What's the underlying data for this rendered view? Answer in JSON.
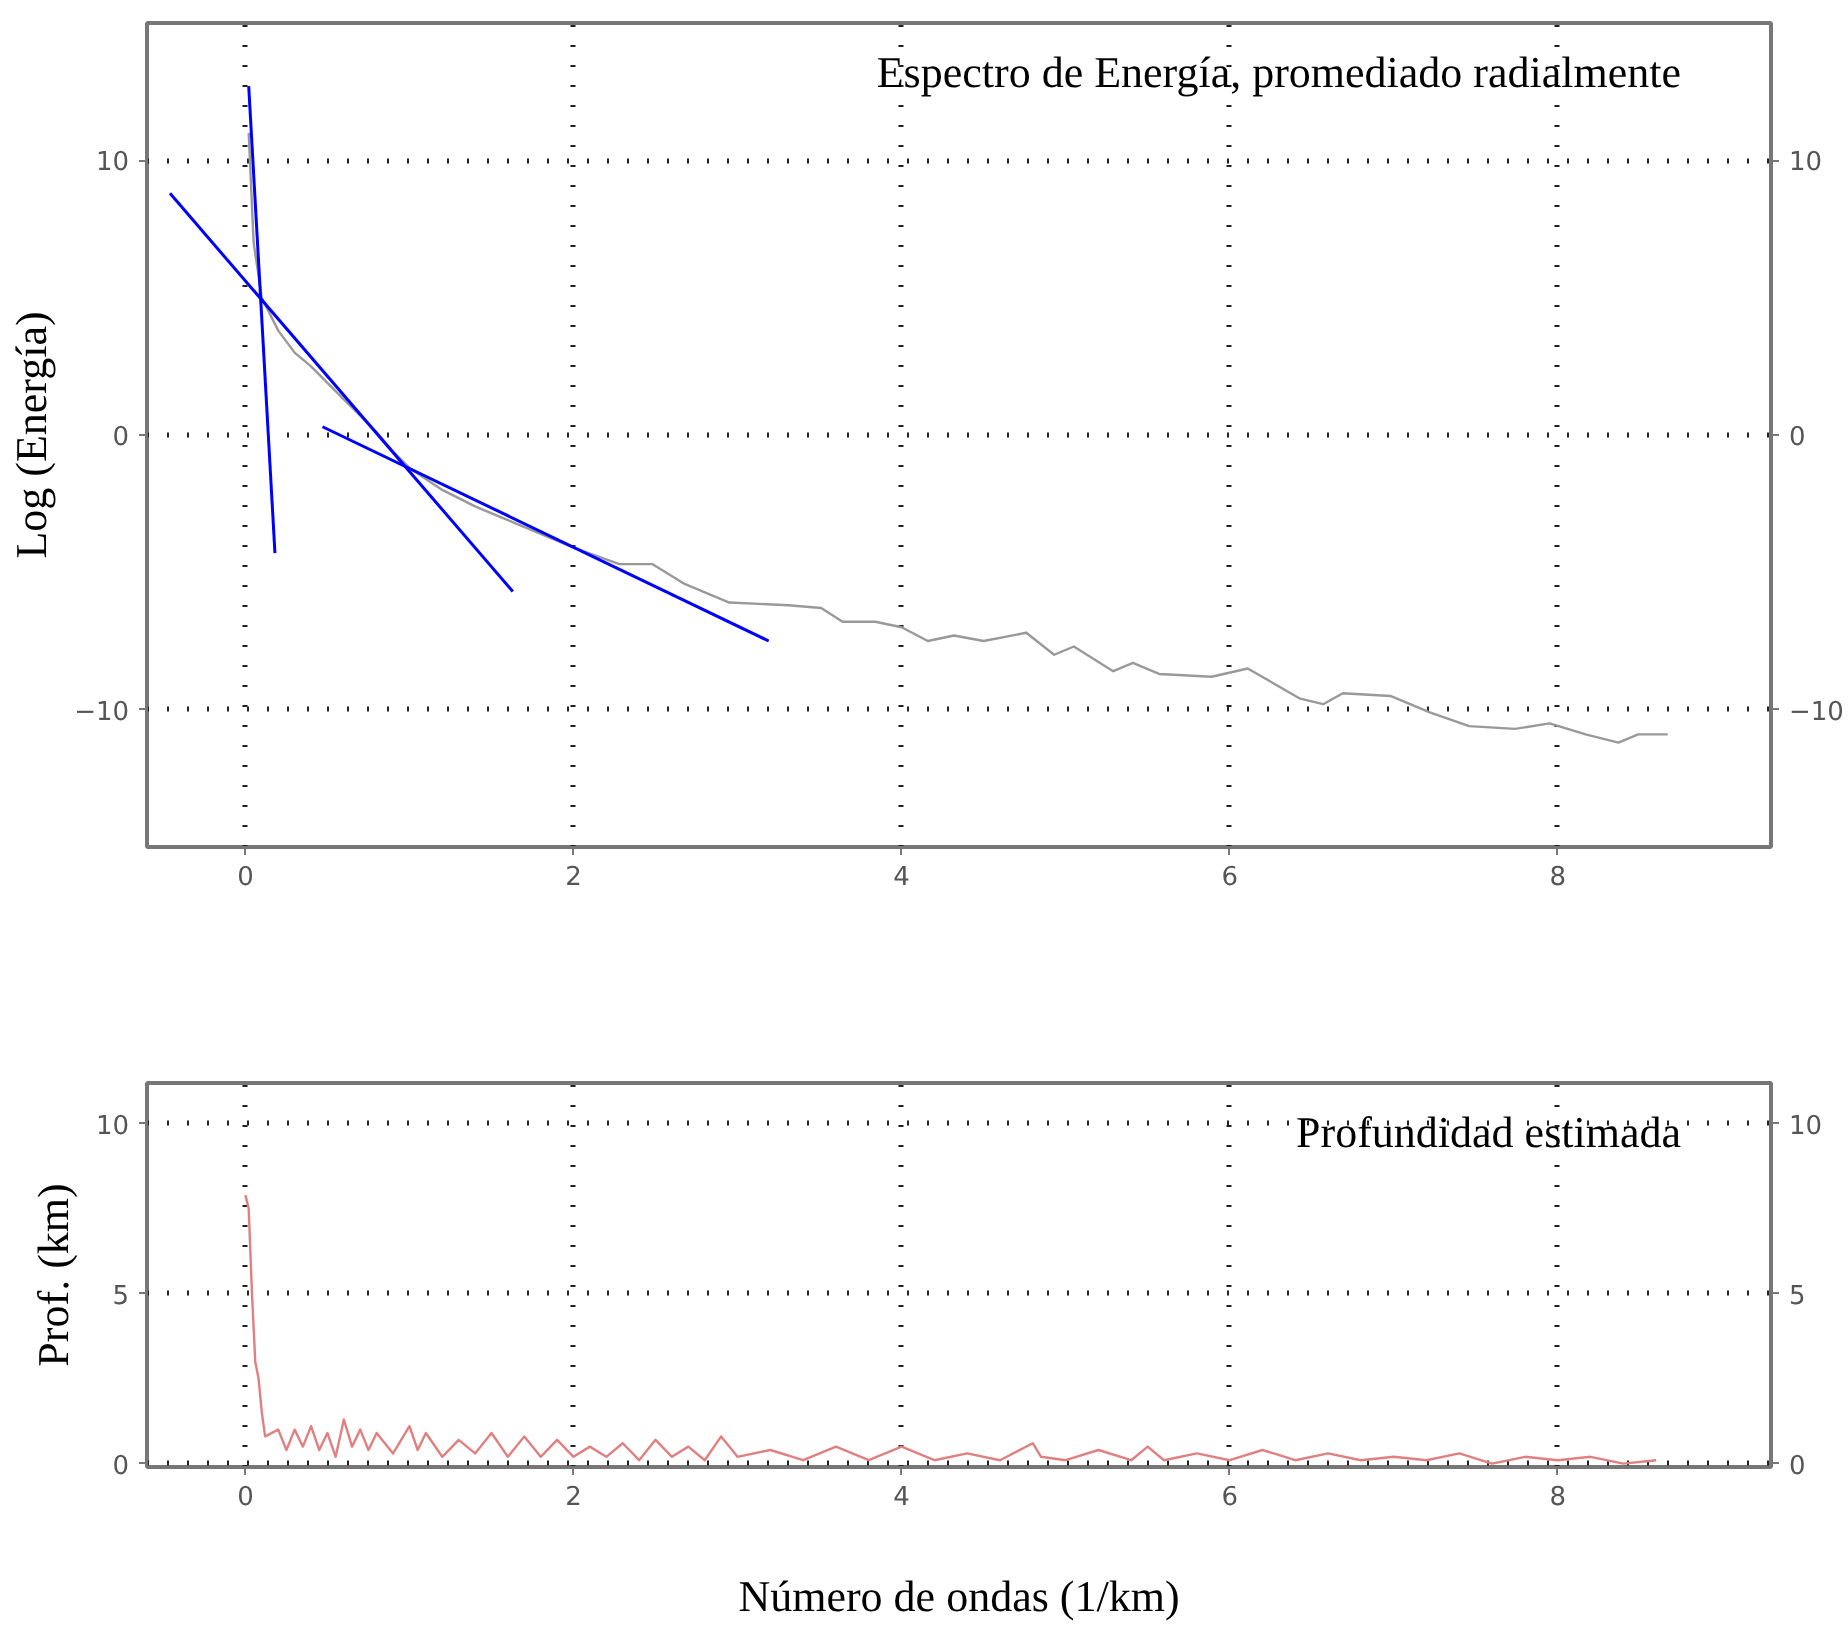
{
  "chart_data": [
    {
      "type": "line",
      "title": "Espectro de Energía, promediado radialmente",
      "ylabel": "Log (Energía)",
      "xlim": [
        -0.6,
        9.3
      ],
      "xticks": [
        0,
        2,
        4,
        6,
        8
      ],
      "ylim": [
        -15,
        15
      ],
      "yticks": [
        -10,
        0,
        10
      ],
      "y2lim": [
        -15,
        15
      ],
      "y2ticks": [
        -10,
        0,
        10
      ],
      "grid": true,
      "series": [
        {
          "color": "#999999",
          "x": [
            0.02,
            0.05,
            0.1,
            0.2,
            0.3,
            0.4,
            0.5,
            0.6,
            0.7,
            0.8,
            0.9,
            1.0,
            1.1,
            1.2,
            1.4,
            1.6,
            1.8,
            2.0,
            2.28,
            2.48,
            2.67,
            2.95,
            3.31,
            3.51,
            3.64,
            3.84,
            4.0,
            4.16,
            4.32,
            4.5,
            4.76,
            4.93,
            5.05,
            5.29,
            5.41,
            5.57,
            5.89,
            6.11,
            6.43,
            6.57,
            6.69,
            6.98,
            7.22,
            7.46,
            7.74,
            7.95,
            8.17,
            8.37,
            8.49,
            8.67
          ],
          "values": [
            11,
            7,
            5,
            3.8,
            3.0,
            2.5,
            1.9,
            1.3,
            0.7,
            0.1,
            -0.6,
            -1.2,
            -1.6,
            -2.0,
            -2.6,
            -3.1,
            -3.6,
            -4.1,
            -4.7,
            -4.7,
            -5.4,
            -6.1,
            -6.2,
            -6.3,
            -6.8,
            -6.8,
            -7.0,
            -7.5,
            -7.3,
            -7.5,
            -7.2,
            -8.0,
            -7.7,
            -8.6,
            -8.3,
            -8.7,
            -8.8,
            -8.5,
            -9.6,
            -9.8,
            -9.4,
            -9.5,
            -10.1,
            -10.6,
            -10.7,
            -10.5,
            -10.9,
            -11.2,
            -10.9,
            -10.9
          ]
        },
        {
          "color": "#0000ff",
          "x": [
            0.02,
            0.18
          ],
          "values": [
            12.7,
            -4.3
          ]
        },
        {
          "color": "#0000ff",
          "x": [
            -0.46,
            1.63
          ],
          "values": [
            8.8,
            -5.7
          ]
        },
        {
          "color": "#0000ff",
          "x": [
            0.47,
            3.19
          ],
          "values": [
            0.3,
            -7.5
          ]
        }
      ]
    },
    {
      "type": "line",
      "title": "Profundidad estimada",
      "ylabel": "Prof. (km)",
      "xlabel": "Número de ondas (1/km)",
      "xlim": [
        -0.6,
        9.3
      ],
      "xticks": [
        0,
        2,
        4,
        6,
        8
      ],
      "ylim": [
        -0.1,
        11.2
      ],
      "yticks": [
        0,
        5,
        10
      ],
      "y2lim": [
        -0.1,
        11.2
      ],
      "y2ticks": [
        0,
        5,
        10
      ],
      "grid": true,
      "series": [
        {
          "color": "#e08080",
          "x": [
            0,
            0.02,
            0.04,
            0.06,
            0.08,
            0.1,
            0.12,
            0.2,
            0.25,
            0.3,
            0.35,
            0.4,
            0.45,
            0.5,
            0.55,
            0.6,
            0.65,
            0.7,
            0.75,
            0.8,
            0.9,
            1.0,
            1.05,
            1.1,
            1.2,
            1.3,
            1.4,
            1.5,
            1.6,
            1.7,
            1.8,
            1.9,
            2.0,
            2.1,
            2.2,
            2.3,
            2.4,
            2.5,
            2.6,
            2.7,
            2.8,
            2.9,
            3.0,
            3.2,
            3.4,
            3.6,
            3.8,
            3.9,
            4.0,
            4.2,
            4.4,
            4.6,
            4.8,
            4.85,
            5.0,
            5.2,
            5.4,
            5.5,
            5.6,
            5.8,
            6.0,
            6.2,
            6.4,
            6.6,
            6.8,
            7.0,
            7.2,
            7.4,
            7.6,
            7.8,
            8.0,
            8.2,
            8.4,
            8.6
          ],
          "values": [
            7.9,
            7.5,
            5,
            3,
            2.5,
            1.5,
            0.8,
            1.0,
            0.4,
            1.0,
            0.5,
            1.1,
            0.4,
            0.9,
            0.2,
            1.3,
            0.5,
            1.0,
            0.4,
            0.9,
            0.3,
            1.1,
            0.4,
            0.9,
            0.2,
            0.7,
            0.3,
            0.9,
            0.2,
            0.8,
            0.2,
            0.7,
            0.2,
            0.5,
            0.2,
            0.6,
            0.1,
            0.7,
            0.2,
            0.5,
            0.1,
            0.8,
            0.2,
            0.4,
            0.1,
            0.5,
            0.1,
            0.3,
            0.5,
            0.1,
            0.3,
            0.1,
            0.6,
            0.2,
            0.1,
            0.4,
            0.1,
            0.5,
            0.1,
            0.3,
            0.1,
            0.4,
            0.1,
            0.3,
            0.1,
            0.2,
            0.1,
            0.3,
            0.0,
            0.2,
            0.1,
            0.2,
            0.0,
            0.1
          ]
        }
      ]
    }
  ]
}
